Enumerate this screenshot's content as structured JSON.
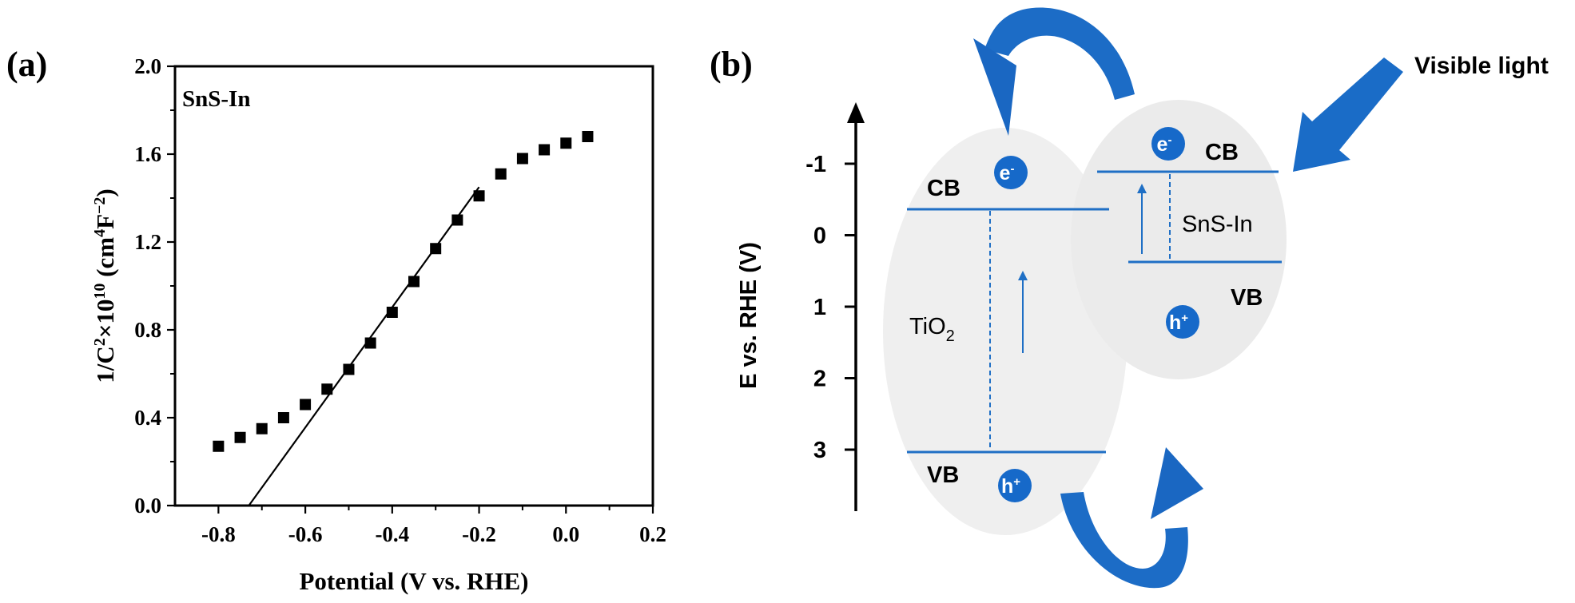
{
  "panel_a": {
    "label": "(a)",
    "chart_data": {
      "type": "scatter",
      "title": "SnS-In",
      "xlabel": "Potential (V vs. RHE)",
      "ylabel_parts": [
        "1/C",
        "2",
        "×10",
        "10",
        " (cm",
        "4",
        "F",
        "−2",
        ")"
      ],
      "xlim": [
        -0.9,
        0.2
      ],
      "ylim": [
        0.0,
        2.0
      ],
      "xticks": [
        -0.8,
        -0.6,
        -0.4,
        -0.2,
        0.0,
        0.2
      ],
      "xtick_labels": [
        "-0.8",
        "-0.6",
        "-0.4",
        "-0.2",
        "0.0",
        "0.2"
      ],
      "yticks": [
        0.0,
        0.4,
        0.8,
        1.2,
        1.6,
        2.0
      ],
      "ytick_labels": [
        "0.0",
        "0.4",
        "0.8",
        "1.2",
        "1.6",
        "2.0"
      ],
      "grid": false,
      "series": [
        {
          "name": "SnS-In",
          "marker": "square",
          "x": [
            -0.8,
            -0.75,
            -0.7,
            -0.65,
            -0.6,
            -0.55,
            -0.5,
            -0.45,
            -0.4,
            -0.35,
            -0.3,
            -0.25,
            -0.2,
            -0.15,
            -0.1,
            -0.05,
            0.0,
            0.05
          ],
          "y": [
            0.27,
            0.31,
            0.35,
            0.4,
            0.46,
            0.53,
            0.62,
            0.74,
            0.88,
            1.02,
            1.17,
            1.3,
            1.41,
            1.51,
            1.58,
            1.62,
            1.65,
            1.68
          ]
        }
      ],
      "fit_line": {
        "name": "linear fit",
        "x": [
          -0.73,
          -0.2
        ],
        "y": [
          0.0,
          1.45
        ]
      }
    }
  },
  "panel_b": {
    "label": "(b)",
    "axis_label": "E vs. RHE (V)",
    "axis_ticks": [
      {
        "value": -1,
        "label": "-1"
      },
      {
        "value": 0,
        "label": "0"
      },
      {
        "value": 1,
        "label": "1"
      },
      {
        "value": 2,
        "label": "2"
      },
      {
        "value": 3,
        "label": "3"
      }
    ],
    "tio2": {
      "name": "TiO",
      "name_sub": "2",
      "cb_label": "CB",
      "vb_label": "VB",
      "electron": "e",
      "electron_sup": "-",
      "hole": "h",
      "hole_sup": "+"
    },
    "sns_in": {
      "name": "SnS-In",
      "cb_label": "CB",
      "vb_label": "VB",
      "electron": "e",
      "electron_sup": "-",
      "hole": "h",
      "hole_sup": "+"
    },
    "light_label": "Visible light",
    "colors": {
      "line": "#1f6fc5",
      "badge": "#1669c9",
      "ellipse": "#efefef",
      "arrow": "#1a6cc7"
    }
  }
}
